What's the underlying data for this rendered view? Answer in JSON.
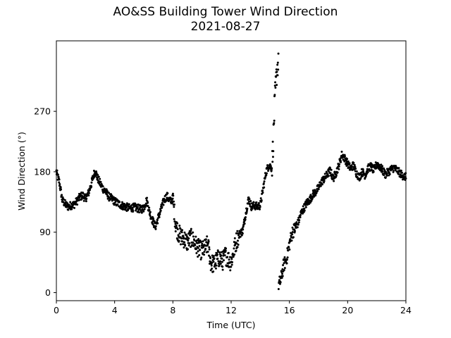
{
  "chart_data": {
    "type": "scatter",
    "title": "AO&SS Building Tower Wind Direction",
    "subtitle": "2021-08-27",
    "xlabel": "Time (UTC)",
    "ylabel": "Wind Direction (°)",
    "xlim": [
      0,
      24
    ],
    "ylim": [
      -12,
      375
    ],
    "x_ticks": [
      0,
      4,
      8,
      12,
      16,
      20,
      24
    ],
    "y_ticks": [
      0,
      90,
      180,
      270
    ],
    "grid": false,
    "marker_color": "#000000",
    "trace": [
      [
        0.0,
        180
      ],
      [
        0.1,
        172
      ],
      [
        0.2,
        165
      ],
      [
        0.3,
        152
      ],
      [
        0.4,
        138
      ],
      [
        0.6,
        132
      ],
      [
        0.8,
        128
      ],
      [
        1.0,
        130
      ],
      [
        1.2,
        131
      ],
      [
        1.4,
        136
      ],
      [
        1.6,
        142
      ],
      [
        1.8,
        145
      ],
      [
        2.0,
        140
      ],
      [
        2.2,
        148
      ],
      [
        2.4,
        162
      ],
      [
        2.6,
        178
      ],
      [
        2.7,
        180
      ],
      [
        2.8,
        172
      ],
      [
        3.0,
        163
      ],
      [
        3.2,
        155
      ],
      [
        3.4,
        150
      ],
      [
        3.6,
        143
      ],
      [
        3.8,
        140
      ],
      [
        4.0,
        136
      ],
      [
        4.3,
        132
      ],
      [
        4.6,
        129
      ],
      [
        5.0,
        126
      ],
      [
        5.4,
        127
      ],
      [
        5.8,
        124
      ],
      [
        6.0,
        126
      ],
      [
        6.2,
        138
      ],
      [
        6.4,
        120
      ],
      [
        6.6,
        108
      ],
      [
        6.8,
        98
      ],
      [
        7.0,
        112
      ],
      [
        7.2,
        125
      ],
      [
        7.4,
        138
      ],
      [
        7.6,
        144
      ],
      [
        7.8,
        136
      ],
      [
        8.0,
        140
      ],
      [
        8.2,
        100
      ],
      [
        8.4,
        88
      ],
      [
        8.6,
        82
      ],
      [
        8.8,
        80
      ],
      [
        9.0,
        74
      ],
      [
        9.2,
        82
      ],
      [
        9.4,
        78
      ],
      [
        9.6,
        70
      ],
      [
        9.8,
        65
      ],
      [
        10.0,
        62
      ],
      [
        10.2,
        66
      ],
      [
        10.4,
        72
      ],
      [
        10.6,
        45
      ],
      [
        10.8,
        42
      ],
      [
        11.0,
        48
      ],
      [
        11.2,
        52
      ],
      [
        11.4,
        46
      ],
      [
        11.6,
        56
      ],
      [
        11.8,
        50
      ],
      [
        12.0,
        45
      ],
      [
        12.2,
        64
      ],
      [
        12.4,
        80
      ],
      [
        12.6,
        88
      ],
      [
        12.8,
        92
      ],
      [
        13.0,
        118
      ],
      [
        13.2,
        140
      ],
      [
        13.4,
        128
      ],
      [
        13.6,
        130
      ],
      [
        13.8,
        128
      ],
      [
        14.0,
        130
      ],
      [
        14.2,
        155
      ],
      [
        14.4,
        180
      ],
      [
        14.6,
        190
      ],
      [
        14.8,
        185
      ],
      [
        14.9,
        230
      ],
      [
        15.0,
        288
      ],
      [
        15.1,
        320
      ],
      [
        15.2,
        340
      ],
      [
        15.25,
        12
      ],
      [
        15.4,
        18
      ],
      [
        15.6,
        40
      ],
      [
        15.8,
        50
      ],
      [
        16.0,
        72
      ],
      [
        16.2,
        90
      ],
      [
        16.4,
        96
      ],
      [
        16.6,
        104
      ],
      [
        16.8,
        118
      ],
      [
        17.0,
        126
      ],
      [
        17.2,
        134
      ],
      [
        17.4,
        138
      ],
      [
        17.6,
        146
      ],
      [
        17.8,
        150
      ],
      [
        18.0,
        156
      ],
      [
        18.2,
        165
      ],
      [
        18.4,
        170
      ],
      [
        18.6,
        176
      ],
      [
        18.8,
        182
      ],
      [
        19.0,
        170
      ],
      [
        19.2,
        178
      ],
      [
        19.4,
        190
      ],
      [
        19.6,
        205
      ],
      [
        19.8,
        200
      ],
      [
        20.0,
        192
      ],
      [
        20.2,
        185
      ],
      [
        20.4,
        190
      ],
      [
        20.6,
        178
      ],
      [
        20.8,
        172
      ],
      [
        21.0,
        180
      ],
      [
        21.2,
        175
      ],
      [
        21.4,
        185
      ],
      [
        21.6,
        188
      ],
      [
        21.8,
        182
      ],
      [
        22.0,
        192
      ],
      [
        22.2,
        188
      ],
      [
        22.4,
        182
      ],
      [
        22.6,
        176
      ],
      [
        22.8,
        180
      ],
      [
        23.0,
        184
      ],
      [
        23.2,
        186
      ],
      [
        23.4,
        182
      ],
      [
        23.6,
        178
      ],
      [
        23.8,
        174
      ],
      [
        24.0,
        172
      ]
    ]
  }
}
